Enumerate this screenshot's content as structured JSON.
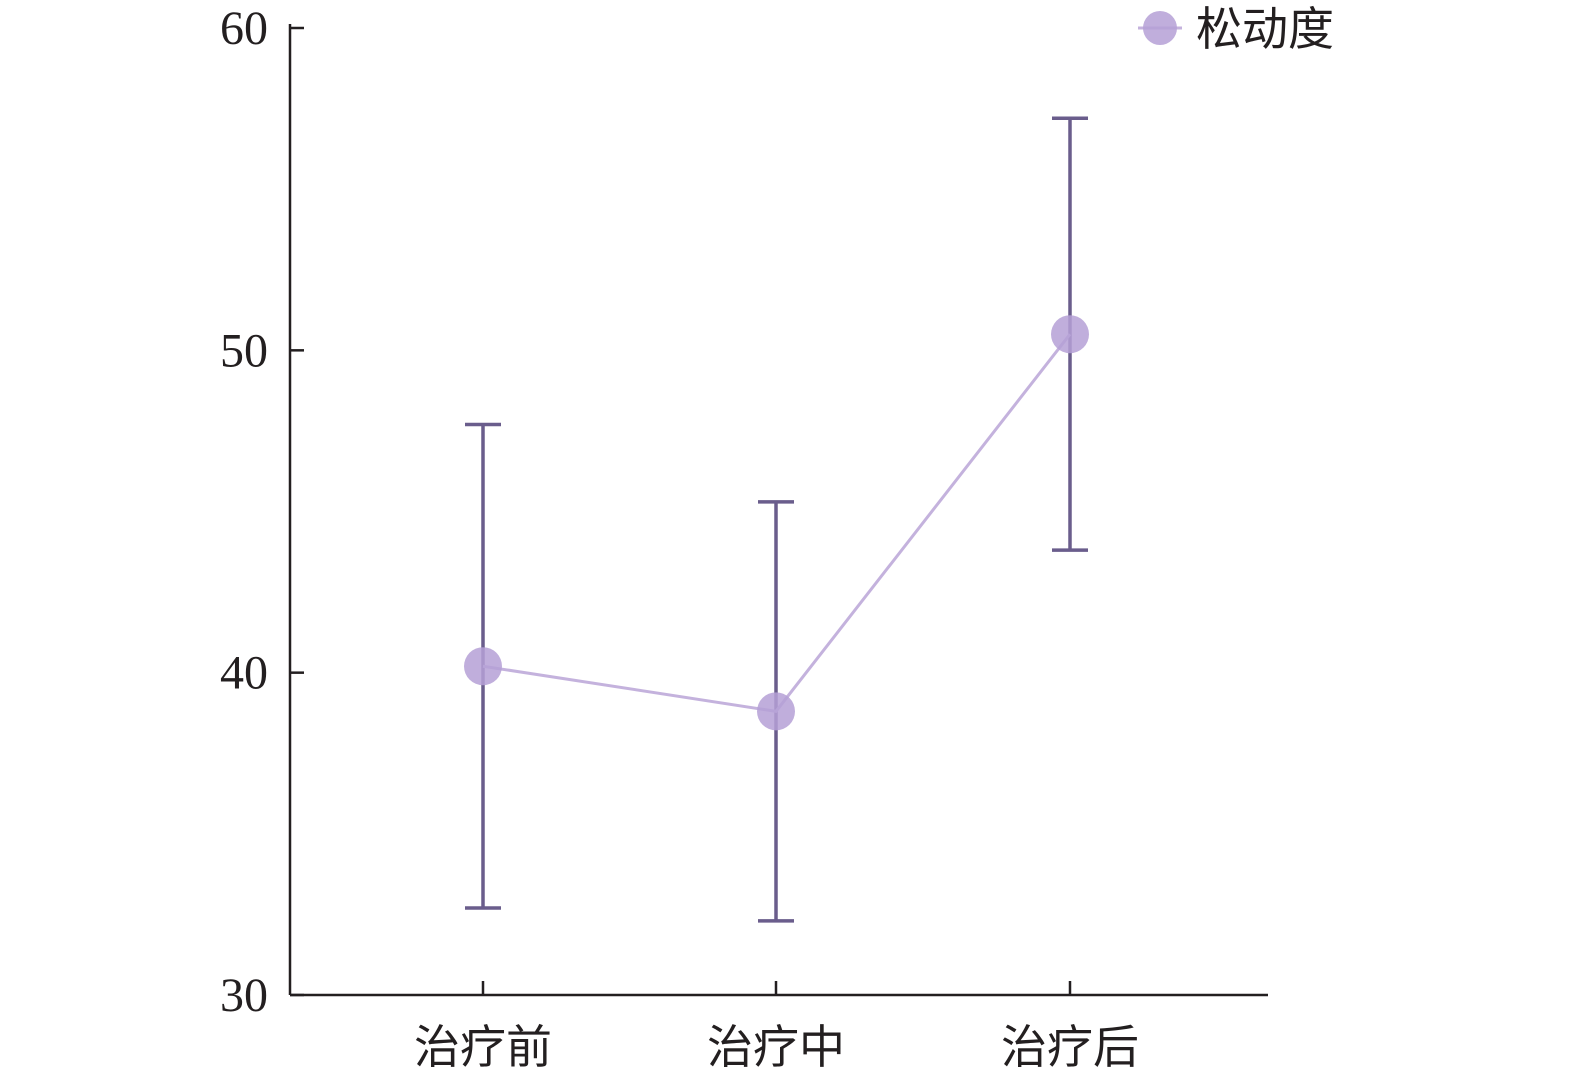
{
  "chart_data": {
    "type": "line",
    "title": "",
    "xlabel": "",
    "ylabel": "",
    "categories": [
      "治疗前",
      "治疗中",
      "治疗后"
    ],
    "ylim": [
      30,
      60
    ],
    "yticks": [
      30,
      40,
      50,
      60
    ],
    "grid": false,
    "legend_position": "top-right",
    "error_bars": true,
    "series": [
      {
        "name": "松动度",
        "values": [
          40.2,
          38.8,
          50.5
        ],
        "error_low": [
          32.7,
          32.3,
          43.8
        ],
        "error_high": [
          47.7,
          45.3,
          57.2
        ]
      }
    ]
  },
  "colors": {
    "line": "#c4b2dd",
    "marker": "#b5a0d6",
    "error_bar": "#6a5d8c",
    "axis": "#231f20",
    "text": "#231f20"
  }
}
